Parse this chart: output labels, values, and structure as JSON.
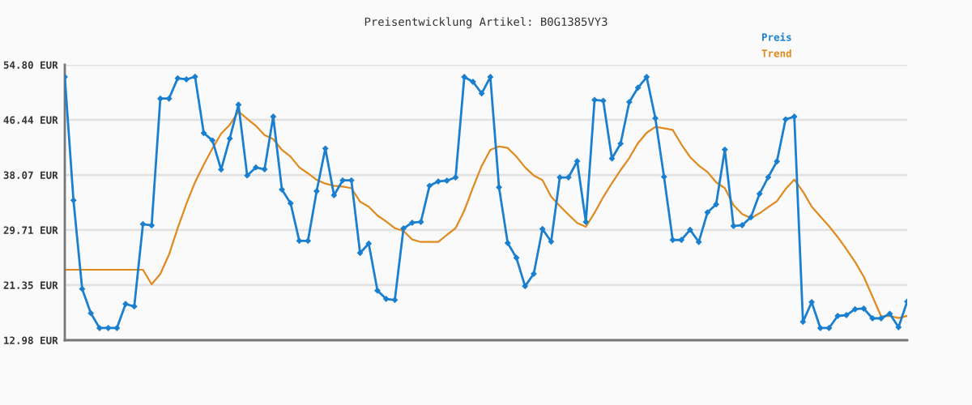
{
  "chart_data": {
    "type": "line",
    "title": "Preisentwicklung Artikel: B0G1385VY3",
    "categories": [
      null,
      null,
      null,
      null,
      null,
      null,
      null,
      null,
      null,
      null,
      null,
      null,
      null,
      null,
      null,
      null,
      null,
      null,
      null,
      null,
      null,
      null,
      null,
      null,
      null,
      null,
      null,
      null,
      null,
      null,
      null,
      null,
      null,
      null,
      null,
      null,
      null,
      null,
      null,
      null,
      null,
      null,
      null,
      null,
      null,
      null,
      null,
      null,
      null,
      null,
      null,
      null,
      null,
      null,
      null,
      null,
      null,
      null,
      null,
      null,
      null,
      null,
      null,
      null,
      null,
      null,
      null,
      null,
      null,
      null,
      null,
      null,
      null,
      null,
      null,
      null,
      null,
      null,
      null,
      null,
      null,
      null,
      null,
      null,
      null,
      null,
      null,
      null,
      null,
      null,
      null,
      null,
      null,
      null,
      null,
      null,
      null,
      null
    ],
    "series": [
      {
        "name": "Preis",
        "color": "#1a7fcf",
        "marker": "diamond",
        "values": [
          52.95,
          34.22,
          20.77,
          17.08,
          14.83,
          14.83,
          14.83,
          18.48,
          18.11,
          30.61,
          30.41,
          49.67,
          49.67,
          52.75,
          52.59,
          52.99,
          44.43,
          43.32,
          38.89,
          43.61,
          48.74,
          37.99,
          39.22,
          38.93,
          46.93,
          35.86,
          33.77,
          28.07,
          28.07,
          35.61,
          42.09,
          35.0,
          37.25,
          37.25,
          26.23,
          27.65,
          20.52,
          19.25,
          19.09,
          29.95,
          30.82,
          30.94,
          36.43,
          37.09,
          37.21,
          37.7,
          52.95,
          52.22,
          50.46,
          52.95,
          36.19,
          27.74,
          25.49,
          21.18,
          23.07,
          29.87,
          27.95,
          37.7,
          37.7,
          40.16,
          30.94,
          49.47,
          49.35,
          40.57,
          42.83,
          49.14,
          51.32,
          52.95,
          46.68,
          37.78,
          28.2,
          28.2,
          29.75,
          27.9,
          32.38,
          33.61,
          41.92,
          30.32,
          30.45,
          31.64,
          35.21,
          37.74,
          40.13,
          46.52,
          46.93,
          15.77,
          18.76,
          14.83,
          14.83,
          16.67,
          16.79,
          17.69,
          17.78,
          16.3,
          16.3,
          17.0,
          14.95,
          18.85
        ]
      },
      {
        "name": "Trend",
        "color": "#e08a1e",
        "marker": "none",
        "values": [
          23.68,
          23.68,
          23.68,
          23.68,
          23.68,
          23.68,
          23.68,
          23.68,
          23.68,
          23.68,
          21.47,
          23.03,
          25.98,
          29.99,
          33.68,
          36.97,
          39.63,
          42.09,
          44.34,
          45.7,
          47.7,
          46.6,
          45.54,
          44.14,
          43.52,
          41.89,
          40.86,
          39.22,
          38.32,
          37.33,
          36.76,
          36.43,
          36.31,
          36.07,
          34.01,
          33.24,
          31.92,
          31.02,
          29.99,
          29.58,
          28.27,
          27.9,
          27.9,
          27.9,
          28.97,
          29.99,
          32.66,
          36.14,
          39.43,
          41.89,
          42.41,
          42.17,
          40.86,
          39.22,
          37.99,
          37.3,
          34.79,
          33.36,
          32.05,
          30.78,
          30.2,
          32.33,
          34.71,
          36.84,
          38.81,
          40.65,
          42.91,
          44.47,
          45.37,
          45.17,
          44.92,
          42.71,
          40.78,
          39.51,
          38.53,
          36.97,
          36.07,
          33.48,
          32.13,
          31.52,
          32.25,
          33.19,
          34.1,
          35.94,
          37.37,
          35.53,
          33.28,
          31.76,
          30.29,
          28.64,
          26.79,
          24.87,
          22.61,
          19.62,
          16.58,
          16.67,
          16.34,
          16.67
        ]
      }
    ],
    "ylim": [
      12.98,
      54.8
    ],
    "yticks": [
      {
        "value": 12.98,
        "label": "12.98 EUR"
      },
      {
        "value": 21.35,
        "label": "21.35 EUR"
      },
      {
        "value": 29.71,
        "label": "29.71 EUR"
      },
      {
        "value": 38.07,
        "label": "38.07 EUR"
      },
      {
        "value": 46.44,
        "label": "46.44 EUR"
      },
      {
        "value": 54.8,
        "label": "54.80 EUR"
      }
    ],
    "grid": "y",
    "legend": "top right",
    "line_style": "solid"
  }
}
